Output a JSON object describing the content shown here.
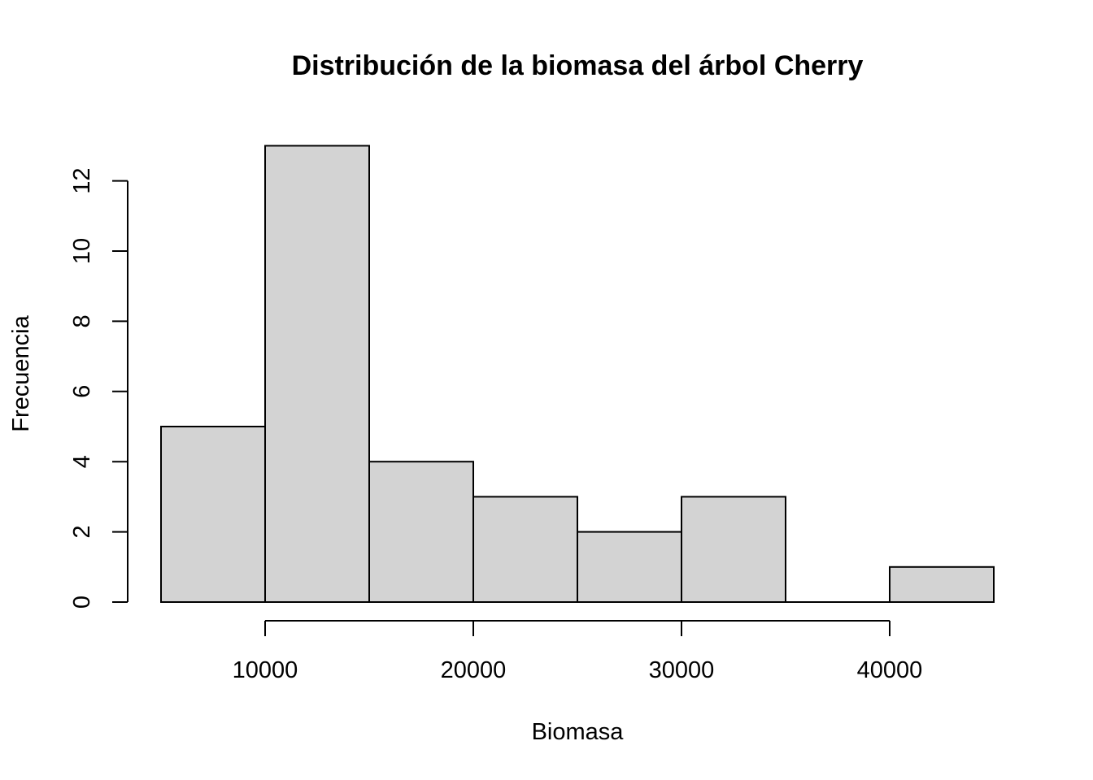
{
  "chart_data": {
    "type": "bar",
    "title": "Distribución de la biomasa del árbol Cherry",
    "xlabel": "Biomasa",
    "ylabel": "Frecuencia",
    "bins": [
      {
        "start": 5000,
        "end": 10000,
        "count": 5
      },
      {
        "start": 10000,
        "end": 15000,
        "count": 13
      },
      {
        "start": 15000,
        "end": 20000,
        "count": 4
      },
      {
        "start": 20000,
        "end": 25000,
        "count": 3
      },
      {
        "start": 25000,
        "end": 30000,
        "count": 2
      },
      {
        "start": 30000,
        "end": 35000,
        "count": 3
      },
      {
        "start": 35000,
        "end": 40000,
        "count": 0
      },
      {
        "start": 40000,
        "end": 45000,
        "count": 1
      }
    ],
    "x_ticks": [
      10000,
      20000,
      30000,
      40000
    ],
    "x_tick_labels": [
      "10000",
      "20000",
      "30000",
      "40000"
    ],
    "y_ticks": [
      0,
      2,
      4,
      6,
      8,
      10,
      12
    ],
    "y_tick_labels": [
      "0",
      "2",
      "4",
      "6",
      "8",
      "10",
      "12"
    ],
    "xlim": [
      5000,
      45000
    ],
    "ylim": [
      0,
      13
    ],
    "bar_color": "#d3d3d3",
    "grid": false
  }
}
